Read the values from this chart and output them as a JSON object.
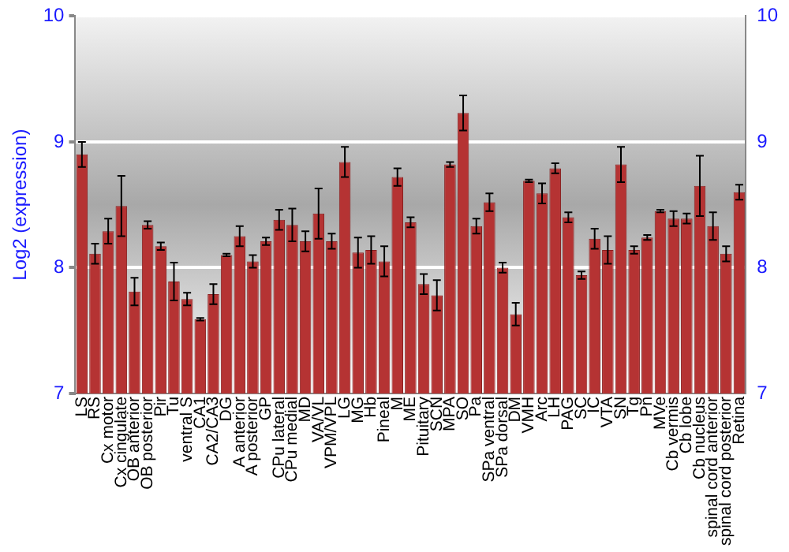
{
  "chart_data": {
    "type": "bar",
    "ylabel": "Log2 (expression)",
    "categories": [
      "LS",
      "RS",
      "Cx motor",
      "Cx cingulate",
      "OB anterior",
      "OB posterior",
      "Pir",
      "Tu",
      "ventral S",
      "CA1",
      "CA2/CA3",
      "DG",
      "A anterior",
      "A posterior",
      "GP",
      "CPu lateral",
      "CPu medial",
      "MD",
      "VA/VL",
      "VPM/VPL",
      "LG",
      "MG",
      "Hb",
      "Pineal",
      "M",
      "ME",
      "Pituitary",
      "SCN",
      "MPA",
      "SO",
      "Pa",
      "SPa ventral",
      "SPa dorsal",
      "DM",
      "VMH",
      "Arc",
      "LH",
      "PAG",
      "SC",
      "IC",
      "VTA",
      "SN",
      "Tg",
      "Pn",
      "MVe",
      "Cb vermis",
      "Cb lobe",
      "Cb nucleus",
      "spinal cord anterior",
      "spinal cord posterior",
      "Retina"
    ],
    "values": [
      8.9,
      8.11,
      8.29,
      8.49,
      7.81,
      8.34,
      8.17,
      7.89,
      7.75,
      7.59,
      7.79,
      8.1,
      8.25,
      8.05,
      8.21,
      8.38,
      8.34,
      8.21,
      8.43,
      8.21,
      8.84,
      8.12,
      8.14,
      8.05,
      8.72,
      8.36,
      7.87,
      7.78,
      8.82,
      9.23,
      8.33,
      8.52,
      8.0,
      7.63,
      8.69,
      8.59,
      8.79,
      8.4,
      7.94,
      8.23,
      8.14,
      8.82,
      8.14,
      8.24,
      8.45,
      8.39,
      8.39,
      8.65,
      8.33,
      8.11,
      8.6
    ],
    "errors": [
      0.1,
      0.08,
      0.1,
      0.24,
      0.11,
      0.03,
      0.03,
      0.15,
      0.05,
      0.01,
      0.08,
      0.01,
      0.08,
      0.05,
      0.03,
      0.08,
      0.13,
      0.08,
      0.2,
      0.06,
      0.12,
      0.12,
      0.11,
      0.12,
      0.07,
      0.04,
      0.08,
      0.12,
      0.02,
      0.14,
      0.06,
      0.07,
      0.04,
      0.09,
      0.01,
      0.08,
      0.04,
      0.04,
      0.03,
      0.08,
      0.11,
      0.14,
      0.03,
      0.02,
      0.01,
      0.06,
      0.04,
      0.24,
      0.11,
      0.06,
      0.06
    ],
    "color": "#b53333",
    "ylim": [
      7,
      10
    ],
    "yticks": [
      7,
      8,
      9,
      10
    ],
    "y2lim": [
      7,
      10
    ],
    "y2ticks": [
      7,
      8,
      9,
      10
    ],
    "grid": "y",
    "legend": false
  }
}
